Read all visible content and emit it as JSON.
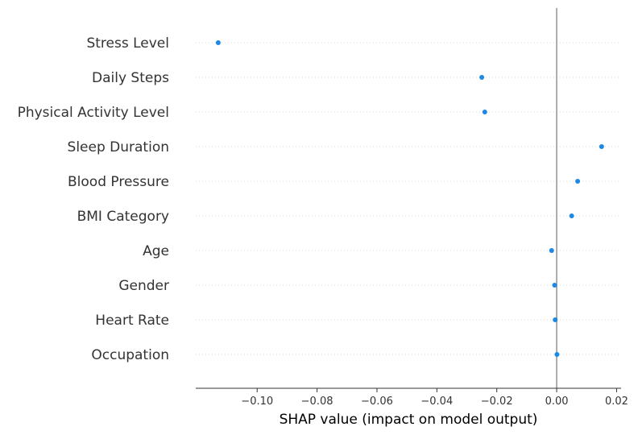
{
  "chart_data": {
    "type": "scatter",
    "title": "",
    "xlabel": "SHAP value (impact on model output)",
    "ylabel": "",
    "xlim": [
      -0.1205,
      0.0215
    ],
    "x_ticks": [
      -0.1,
      -0.08,
      -0.06,
      -0.04,
      -0.02,
      0.0,
      0.02
    ],
    "x_tick_labels": [
      "−0.10",
      "−0.08",
      "−0.06",
      "−0.04",
      "−0.02",
      "0.00",
      "0.02"
    ],
    "grid": "dotted horizontal row guides",
    "reference_line_x": 0,
    "features": [
      "Stress Level",
      "Daily Steps",
      "Physical Activity Level",
      "Sleep Duration",
      "Blood Pressure",
      "BMI Category",
      "Age",
      "Gender",
      "Heart Rate",
      "Occupation"
    ],
    "series": [
      {
        "points": [
          {
            "feature": "Stress Level",
            "x": -0.113
          },
          {
            "feature": "Daily Steps",
            "x": -0.025
          },
          {
            "feature": "Physical Activity Level",
            "x": -0.024
          },
          {
            "feature": "Sleep Duration",
            "x": 0.015
          },
          {
            "feature": "Blood Pressure",
            "x": 0.007
          },
          {
            "feature": "BMI Category",
            "x": 0.005
          },
          {
            "feature": "Age",
            "x": -0.0017
          },
          {
            "feature": "Gender",
            "x": -0.0007
          },
          {
            "feature": "Heart Rate",
            "x": -0.0005
          },
          {
            "feature": "Occupation",
            "x": 0.0001
          }
        ]
      }
    ],
    "colors": {
      "point": "#1E88E5",
      "zero_line": "#999999",
      "axis": "#333333",
      "row_guide": "#cccccc"
    }
  }
}
